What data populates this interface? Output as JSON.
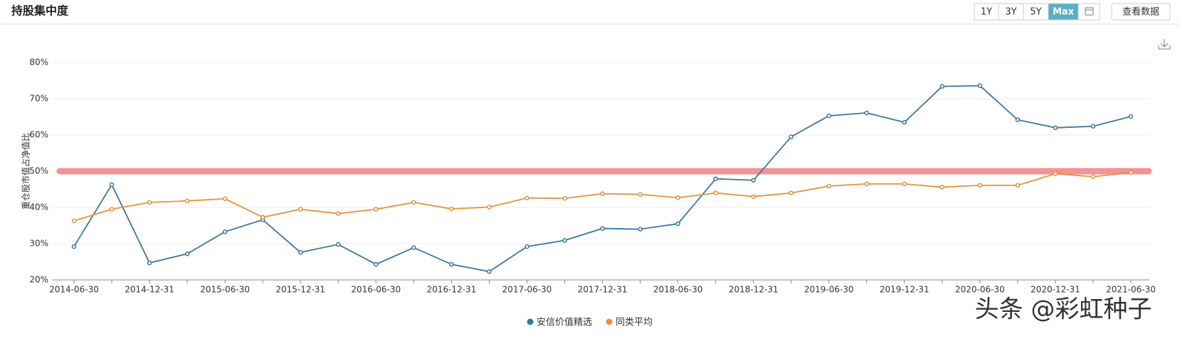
{
  "header": {
    "title": "持股集中度",
    "range_buttons": [
      "1Y",
      "3Y",
      "5Y",
      "Max"
    ],
    "active_range": 3,
    "view_data_button": "查看数据"
  },
  "watermark": "头条 @彩虹种子",
  "chart_data": {
    "type": "line",
    "y_label": "重仓股市值占净值比",
    "categories": [
      "2014-06-30",
      null,
      "2014-12-31",
      null,
      "2015-06-30",
      null,
      "2015-12-31",
      null,
      "2016-06-30",
      null,
      "2016-12-31",
      null,
      "2017-06-30",
      null,
      "2017-12-31",
      null,
      "2018-06-30",
      null,
      "2018-12-31",
      null,
      "2019-06-30",
      null,
      "2019-12-31",
      null,
      "2020-06-30",
      null,
      "2020-12-31",
      null,
      "2021-06-30"
    ],
    "series": [
      {
        "name": "安信价值精选",
        "color": "#3a78a0",
        "values": [
          29.2,
          46.3,
          24.7,
          27.2,
          33.3,
          36.6,
          27.6,
          29.8,
          24.3,
          28.9,
          24.3,
          22.3,
          29.2,
          30.9,
          34.2,
          34.0,
          35.5,
          47.9,
          47.5,
          59.5,
          65.3,
          66.1,
          63.5,
          73.4,
          73.6,
          64.2,
          62.0,
          62.4,
          65.1
        ]
      },
      {
        "name": "同类平均",
        "color": "#e8913a",
        "values": [
          36.3,
          39.5,
          41.4,
          41.8,
          42.4,
          37.3,
          39.5,
          38.3,
          39.5,
          41.4,
          39.6,
          40.1,
          42.6,
          42.5,
          43.8,
          43.6,
          42.7,
          44.0,
          43.0,
          44.0,
          45.9,
          46.5,
          46.5,
          45.6,
          46.1,
          46.1,
          49.3,
          48.5,
          49.6
        ]
      }
    ],
    "ylim": [
      20,
      80
    ],
    "yticks": [
      {
        "value": 20,
        "label": "20%"
      },
      {
        "value": 30,
        "label": "30%"
      },
      {
        "value": 40,
        "label": "40%"
      },
      {
        "value": 50,
        "label": "50%"
      },
      {
        "value": 60,
        "label": "60%"
      },
      {
        "value": 70,
        "label": "70%"
      },
      {
        "value": 80,
        "label": "80%"
      }
    ],
    "grid": true,
    "reference_line": {
      "value": 50,
      "color": "#f09497"
    }
  }
}
